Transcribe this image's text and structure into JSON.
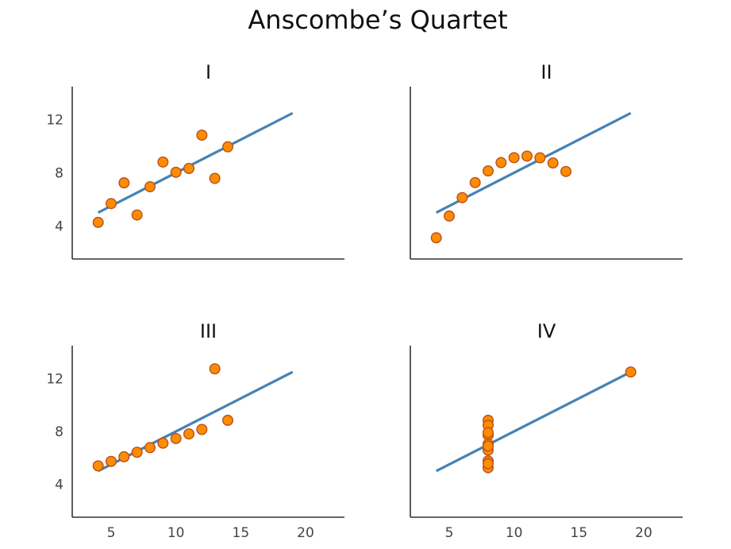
{
  "title": "Anscombe’s Quartet",
  "chart_data": [
    {
      "type": "scatter",
      "title": "I",
      "xlim": [
        2,
        23
      ],
      "ylim": [
        1.5,
        14.5
      ],
      "x": [
        10,
        8,
        13,
        9,
        11,
        14,
        6,
        4,
        12,
        7,
        5
      ],
      "y": [
        8.04,
        6.95,
        7.58,
        8.81,
        8.33,
        9.96,
        7.24,
        4.26,
        10.84,
        4.82,
        5.68
      ],
      "fit": {
        "x": [
          4,
          19
        ],
        "y": [
          5.0,
          12.5
        ]
      },
      "xticks": [],
      "yticks": [
        4,
        8,
        12
      ],
      "point_color": "#ff8c00",
      "line_color": "#4682b4"
    },
    {
      "type": "scatter",
      "title": "II",
      "xlim": [
        2,
        23
      ],
      "ylim": [
        1.5,
        14.5
      ],
      "x": [
        10,
        8,
        13,
        9,
        11,
        14,
        6,
        4,
        12,
        7,
        5
      ],
      "y": [
        9.14,
        8.14,
        8.74,
        8.77,
        9.26,
        8.1,
        6.13,
        3.1,
        9.13,
        7.26,
        4.74
      ],
      "fit": {
        "x": [
          4,
          19
        ],
        "y": [
          5.0,
          12.5
        ]
      },
      "xticks": [],
      "yticks": [],
      "point_color": "#ff8c00",
      "line_color": "#4682b4"
    },
    {
      "type": "scatter",
      "title": "III",
      "xlim": [
        2,
        23
      ],
      "ylim": [
        1.5,
        14.5
      ],
      "x": [
        10,
        8,
        13,
        9,
        11,
        14,
        6,
        4,
        12,
        7,
        5
      ],
      "y": [
        7.46,
        6.77,
        12.74,
        7.11,
        7.81,
        8.84,
        6.08,
        5.39,
        8.15,
        6.42,
        5.73
      ],
      "fit": {
        "x": [
          4,
          19
        ],
        "y": [
          5.0,
          12.5
        ]
      },
      "xticks": [
        5,
        10,
        15,
        20
      ],
      "yticks": [
        4,
        8,
        12
      ],
      "point_color": "#ff8c00",
      "line_color": "#4682b4"
    },
    {
      "type": "scatter",
      "title": "IV",
      "xlim": [
        2,
        23
      ],
      "ylim": [
        1.5,
        14.5
      ],
      "x": [
        8,
        8,
        8,
        8,
        8,
        8,
        8,
        19,
        8,
        8,
        8
      ],
      "y": [
        6.58,
        5.76,
        7.71,
        8.84,
        8.47,
        7.04,
        5.25,
        12.5,
        5.56,
        7.91,
        6.89
      ],
      "fit": {
        "x": [
          4,
          19
        ],
        "y": [
          5.0,
          12.5
        ]
      },
      "xticks": [
        5,
        10,
        15,
        20
      ],
      "yticks": [],
      "point_color": "#ff8c00",
      "line_color": "#4682b4"
    }
  ]
}
